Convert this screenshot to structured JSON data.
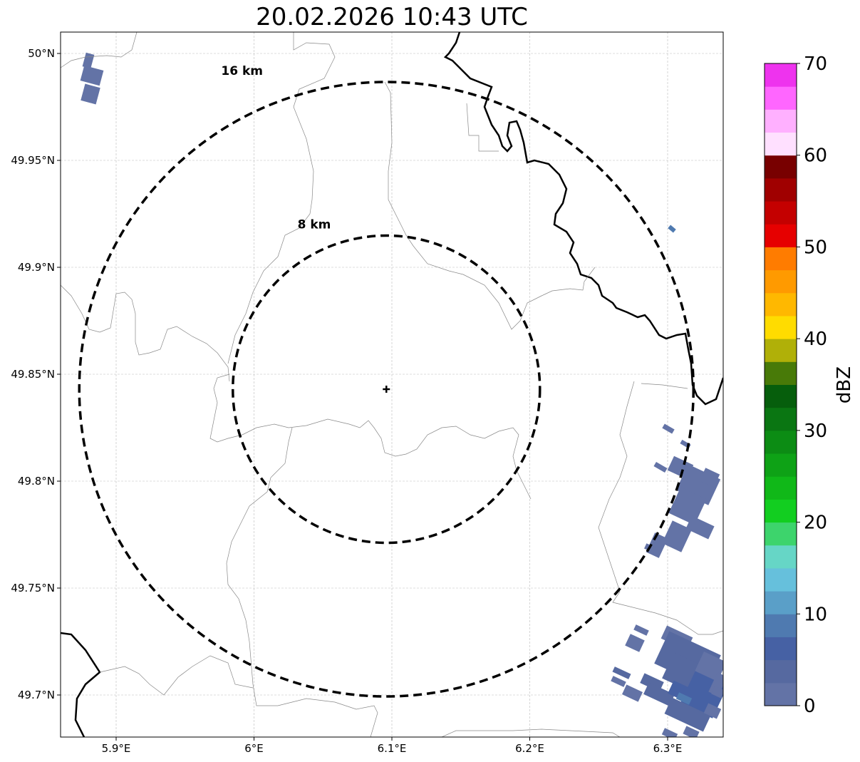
{
  "title": "20.02.2026 10:43 UTC",
  "chart_data": {
    "type": "heatmap",
    "title": "20.02.2026 10:43 UTC",
    "projection": "PlateCarree",
    "xlim": [
      5.86,
      6.34
    ],
    "ylim": [
      49.68,
      50.01
    ],
    "x_ticks": [
      5.9,
      6.0,
      6.1,
      6.2,
      6.3
    ],
    "x_tick_labels": [
      "5.9°E",
      "6°E",
      "6.1°E",
      "6.2°E",
      "6.3°E"
    ],
    "y_ticks": [
      49.7,
      49.75,
      49.8,
      49.85,
      49.9,
      49.95,
      50.0
    ],
    "y_tick_labels": [
      "49.7°N",
      "49.75°N",
      "49.8°N",
      "49.85°N",
      "49.9°N",
      "49.95°N",
      "50°N"
    ],
    "grid": true,
    "radar_center": {
      "lon": 6.096,
      "lat": 49.843
    },
    "range_rings": [
      {
        "radius_km": 8,
        "label": "8 km"
      },
      {
        "radius_km": 16,
        "label": "16 km"
      }
    ],
    "echoes": [
      {
        "area": "northwest",
        "lon": 5.875,
        "lat": 49.99,
        "dbz": 2
      },
      {
        "area": "northeast",
        "lon": 6.305,
        "lat": 49.918,
        "dbz": 8
      },
      {
        "area": "east",
        "lon": 6.31,
        "lat": 49.79,
        "dbz": 2
      },
      {
        "area": "southeast",
        "lon": 6.31,
        "lat": 49.71,
        "dbz": 4
      }
    ],
    "colorbar": {
      "label": "dBZ",
      "min": 0,
      "max": 70,
      "step": 2.5,
      "ticks": [
        0,
        10,
        20,
        30,
        40,
        50,
        60,
        70
      ],
      "tick_labels": [
        "0",
        "10",
        "20",
        "30",
        "40",
        "50",
        "60",
        "70"
      ],
      "colors": [
        "#6373a6",
        "#5669a0",
        "#4661a4",
        "#4f7ab0",
        "#5a9fc8",
        "#66c0dc",
        "#66d6c6",
        "#3dd46c",
        "#12ce20",
        "#10b818",
        "#0ea216",
        "#0c8c14",
        "#0a7612",
        "#065e0c",
        "#487a08",
        "#b0b008",
        "#ffdc00",
        "#ffb800",
        "#ff9a00",
        "#ff7c00",
        "#e60000",
        "#c40000",
        "#a00000",
        "#780000",
        "#ffe0ff",
        "#ffb0ff",
        "#ff66ff",
        "#ee33ee"
      ]
    }
  }
}
